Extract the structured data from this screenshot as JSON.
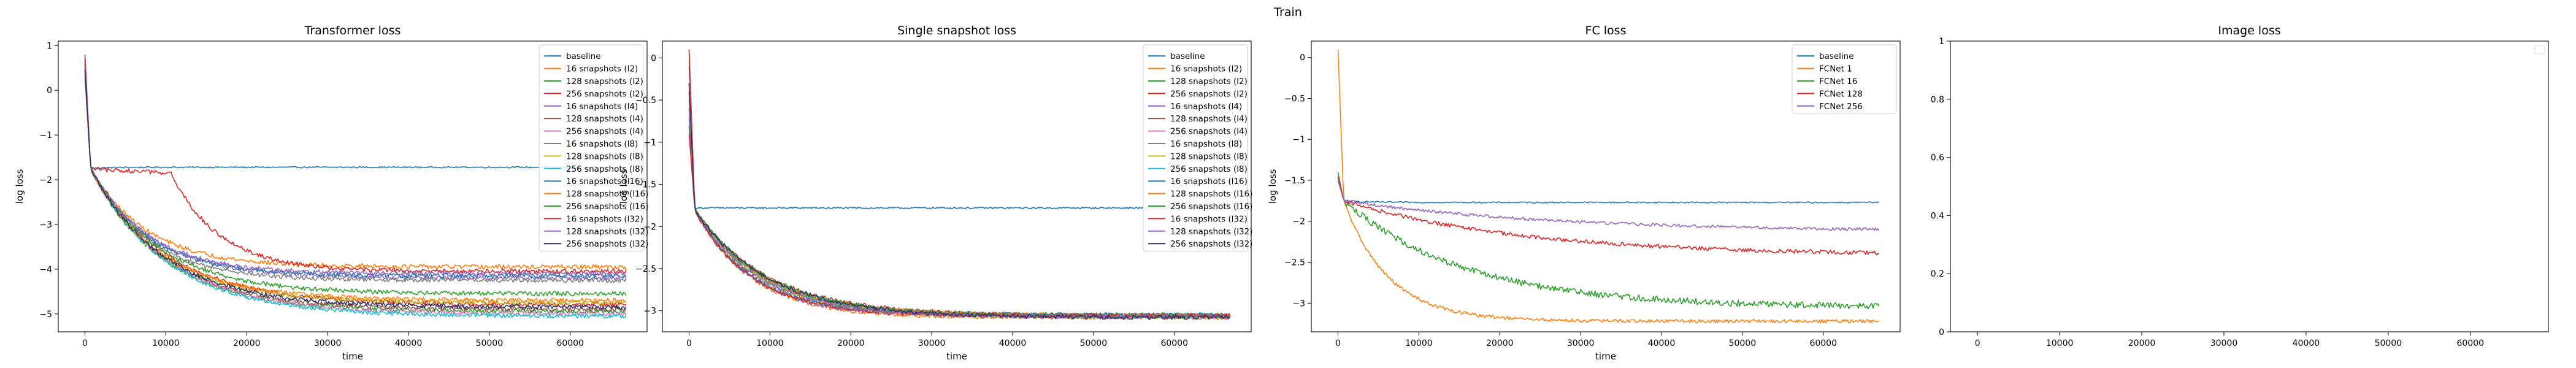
{
  "figure": {
    "suptitle": "Train"
  },
  "chart_data": [
    {
      "type": "line",
      "title": "Transformer loss",
      "xlabel": "time",
      "ylabel": "log loss",
      "xlim": [
        -3300,
        69500
      ],
      "ylim": [
        -5.4,
        1.1
      ],
      "xticks": [
        0,
        10000,
        20000,
        30000,
        40000,
        50000,
        60000
      ],
      "yticks": [
        -5,
        -4,
        -3,
        -2,
        -1,
        0,
        1
      ],
      "legend_position": "top-right",
      "series": [
        {
          "name": "baseline",
          "color": "#1f77b4",
          "start": 0.8,
          "knee": -1.75,
          "end": -1.72,
          "tau": 2000,
          "noise": 0.015
        },
        {
          "name": "16 snapshots (l2)",
          "color": "#ff7f0e",
          "start": 0.7,
          "knee": -1.75,
          "end": -3.95,
          "tau": 7000,
          "noise": 0.05
        },
        {
          "name": "128 snapshots (l2)",
          "color": "#2ca02c",
          "start": 0.6,
          "knee": -1.75,
          "end": -4.95,
          "tau": 9000,
          "noise": 0.05
        },
        {
          "name": "256 snapshots (l2)",
          "color": "#d62728",
          "start": 0.75,
          "knee": -1.75,
          "end": -4.8,
          "tau": 9500,
          "noise": 0.05
        },
        {
          "name": "16 snapshots (l4)",
          "color": "#9467bd",
          "start": 0.5,
          "knee": -1.75,
          "end": -4.2,
          "tau": 7500,
          "noise": 0.05
        },
        {
          "name": "128 snapshots (l4)",
          "color": "#8c564b",
          "start": 0.4,
          "knee": -1.75,
          "end": -4.9,
          "tau": 9000,
          "noise": 0.05
        },
        {
          "name": "256 snapshots (l4)",
          "color": "#e377c2",
          "start": 0.55,
          "knee": -1.75,
          "end": -5.0,
          "tau": 9500,
          "noise": 0.05
        },
        {
          "name": "16 snapshots (l8)",
          "color": "#7f7f7f",
          "start": 0.3,
          "knee": -1.75,
          "end": -4.25,
          "tau": 7000,
          "noise": 0.05
        },
        {
          "name": "128 snapshots (l8)",
          "color": "#bcbd22",
          "start": 0.45,
          "knee": -1.75,
          "end": -4.75,
          "tau": 8500,
          "noise": 0.05
        },
        {
          "name": "256 snapshots (l8)",
          "color": "#17becf",
          "start": 0.6,
          "knee": -1.75,
          "end": -5.05,
          "tau": 9500,
          "noise": 0.05
        },
        {
          "name": "16 snapshots (l16)",
          "color": "#1f77b4",
          "start": 0.35,
          "knee": -1.75,
          "end": -4.15,
          "tau": 7000,
          "noise": 0.05
        },
        {
          "name": "128 snapshots (l16)",
          "color": "#ff7f0e",
          "start": 0.5,
          "knee": -1.75,
          "end": -4.7,
          "tau": 8500,
          "noise": 0.05
        },
        {
          "name": "256 snapshots (l16)",
          "color": "#2ca02c",
          "start": 0.65,
          "knee": -1.75,
          "end": -4.55,
          "tau": 8500,
          "noise": 0.05
        },
        {
          "name": "16 snapshots (l32)",
          "color": "#d62728",
          "start": 0.7,
          "knee": -1.75,
          "end": -4.05,
          "tau": 6000,
          "noise": 0.05,
          "delay": 10000
        },
        {
          "name": "128 snapshots (l32)",
          "color": "#9467bd",
          "start": 0.5,
          "knee": -1.75,
          "end": -4.1,
          "tau": 7000,
          "noise": 0.05
        },
        {
          "name": "256 snapshots (l32)",
          "color": "#2f2f5f",
          "start": 0.45,
          "knee": -1.75,
          "end": -4.85,
          "tau": 9000,
          "noise": 0.05
        }
      ]
    },
    {
      "type": "line",
      "title": "Single snapshot loss",
      "xlabel": "time",
      "ylabel": "log loss",
      "xlim": [
        -3300,
        69500
      ],
      "ylim": [
        -3.25,
        0.2
      ],
      "xticks": [
        0,
        10000,
        20000,
        30000,
        40000,
        50000,
        60000
      ],
      "yticks": [
        -3.0,
        -2.5,
        -2.0,
        -1.5,
        -1.0,
        -0.5,
        0.0
      ],
      "legend_position": "top-right",
      "series": [
        {
          "name": "baseline",
          "color": "#1f77b4",
          "start": 0.05,
          "knee": -1.78,
          "end": -1.78,
          "tau": 2000,
          "noise": 0.01
        },
        {
          "name": "16 snapshots (l2)",
          "color": "#ff7f0e",
          "start": 0.1,
          "knee": -1.8,
          "end": -3.08,
          "tau": 7000,
          "noise": 0.025
        },
        {
          "name": "128 snapshots (l2)",
          "color": "#2ca02c",
          "start": -0.1,
          "knee": -1.8,
          "end": -3.05,
          "tau": 8000,
          "noise": 0.025
        },
        {
          "name": "256 snapshots (l2)",
          "color": "#d62728",
          "start": 0.1,
          "knee": -1.8,
          "end": -3.06,
          "tau": 9000,
          "noise": 0.025
        },
        {
          "name": "16 snapshots (l4)",
          "color": "#9467bd",
          "start": -0.3,
          "knee": -1.8,
          "end": -3.07,
          "tau": 7000,
          "noise": 0.025
        },
        {
          "name": "128 snapshots (l4)",
          "color": "#8c564b",
          "start": -0.4,
          "knee": -1.8,
          "end": -3.06,
          "tau": 8500,
          "noise": 0.025
        },
        {
          "name": "256 snapshots (l4)",
          "color": "#e377c2",
          "start": -0.2,
          "knee": -1.8,
          "end": -3.08,
          "tau": 9000,
          "noise": 0.025
        },
        {
          "name": "16 snapshots (l8)",
          "color": "#7f7f7f",
          "start": -0.5,
          "knee": -1.8,
          "end": -3.05,
          "tau": 7500,
          "noise": 0.025
        },
        {
          "name": "128 snapshots (l8)",
          "color": "#bcbd22",
          "start": -0.3,
          "knee": -1.8,
          "end": -3.07,
          "tau": 8000,
          "noise": 0.025
        },
        {
          "name": "256 snapshots (l8)",
          "color": "#17becf",
          "start": -0.6,
          "knee": -1.8,
          "end": -3.06,
          "tau": 8500,
          "noise": 0.025
        },
        {
          "name": "16 snapshots (l16)",
          "color": "#1f77b4",
          "start": -0.8,
          "knee": -1.8,
          "end": -3.05,
          "tau": 7000,
          "noise": 0.025
        },
        {
          "name": "128 snapshots (l16)",
          "color": "#ff7f0e",
          "start": -0.4,
          "knee": -1.8,
          "end": -3.06,
          "tau": 8500,
          "noise": 0.025
        },
        {
          "name": "256 snapshots (l16)",
          "color": "#2ca02c",
          "start": -0.7,
          "knee": -1.8,
          "end": -3.07,
          "tau": 9000,
          "noise": 0.025
        },
        {
          "name": "16 snapshots (l32)",
          "color": "#d62728",
          "start": -0.9,
          "knee": -1.8,
          "end": -3.06,
          "tau": 7000,
          "noise": 0.025
        },
        {
          "name": "128 snapshots (l32)",
          "color": "#9467bd",
          "start": -0.6,
          "knee": -1.8,
          "end": -3.07,
          "tau": 8000,
          "noise": 0.025
        },
        {
          "name": "256 snapshots (l32)",
          "color": "#2f2f5f",
          "start": -0.3,
          "knee": -1.8,
          "end": -3.08,
          "tau": 9000,
          "noise": 0.025
        }
      ]
    },
    {
      "type": "line",
      "title": "FC loss",
      "xlabel": "time",
      "ylabel": "log loss",
      "xlim": [
        -3300,
        69500
      ],
      "ylim": [
        -3.35,
        0.2
      ],
      "xticks": [
        0,
        10000,
        20000,
        30000,
        40000,
        50000,
        60000
      ],
      "yticks": [
        -3.0,
        -2.5,
        -2.0,
        -1.5,
        -1.0,
        -0.5,
        0.0
      ],
      "legend_position": "top-right",
      "series": [
        {
          "name": "baseline",
          "color": "#1f77b4",
          "start": -1.45,
          "knee": -1.75,
          "end": -1.77,
          "tau": 3000,
          "noise": 0.008
        },
        {
          "name": "FCNet 1",
          "color": "#ff7f0e",
          "start": 0.1,
          "knee": -1.75,
          "end": -3.22,
          "tau": 5500,
          "noise": 0.02
        },
        {
          "name": "FCNet 16",
          "color": "#2ca02c",
          "start": -1.4,
          "knee": -1.75,
          "end": -3.05,
          "tau": 15000,
          "noise": 0.04
        },
        {
          "name": "FCNet 128",
          "color": "#d62728",
          "start": -1.45,
          "knee": -1.75,
          "end": -2.42,
          "tau": 22000,
          "noise": 0.025
        },
        {
          "name": "FCNet 256",
          "color": "#9467bd",
          "start": -1.5,
          "knee": -1.75,
          "end": -2.13,
          "tau": 26000,
          "noise": 0.018
        }
      ]
    },
    {
      "type": "line",
      "title": "Image loss",
      "xlabel": "",
      "ylabel": "",
      "xlim": [
        -3300,
        69500
      ],
      "ylim": [
        0,
        1
      ],
      "xticks": [
        0,
        10000,
        20000,
        30000,
        40000,
        50000,
        60000
      ],
      "yticks": [
        0.0,
        0.2,
        0.4,
        0.6,
        0.8,
        1.0
      ],
      "series": []
    }
  ]
}
